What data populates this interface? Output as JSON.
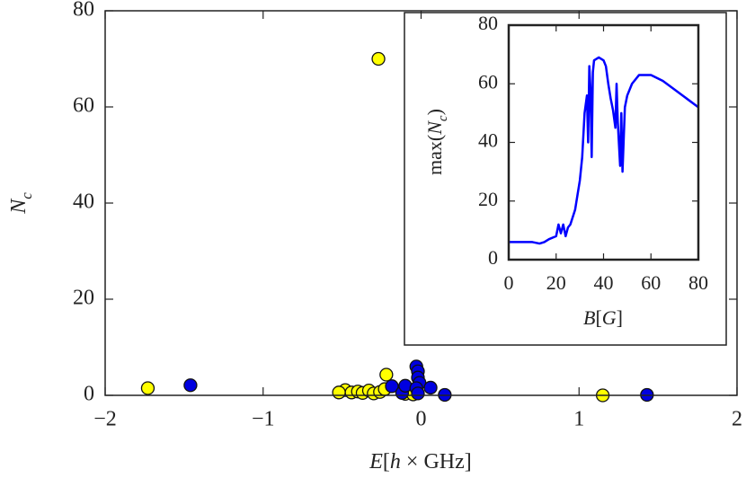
{
  "chart_data": [
    {
      "type": "scatter",
      "xlabel": [
        {
          "text": "E",
          "italic": true
        },
        {
          "text": "["
        },
        {
          "text": "h",
          "italic": true
        },
        {
          "text": " × GHz]"
        }
      ],
      "ylabel": [
        {
          "text": "N",
          "italic": true
        },
        {
          "text": "c",
          "italic": true,
          "sub": true
        }
      ],
      "xlim": [
        -2,
        2
      ],
      "ylim": [
        0,
        80
      ],
      "xticks": [
        {
          "value": -2,
          "label": "−2"
        },
        {
          "value": -1,
          "label": "−1"
        },
        0,
        1,
        2
      ],
      "yticks": [
        0,
        20,
        40,
        60,
        80
      ],
      "series": [
        {
          "color": "#ffff00",
          "x": [
            -1.73,
            -0.27,
            -0.48,
            -0.22,
            -0.52,
            -0.44,
            -0.4,
            -0.37,
            -0.33,
            -0.3,
            -0.26,
            -0.23,
            -0.1,
            -0.05,
            1.15
          ],
          "values": [
            1.5,
            70,
            1.1,
            4.3,
            0.6,
            0.6,
            0.8,
            0.5,
            1.0,
            0.4,
            0.7,
            1.3,
            0.3,
            0.2,
            0
          ]
        },
        {
          "color": "#0000e0",
          "x": [
            -1.46,
            -0.185,
            -0.12,
            -0.1,
            -0.03,
            -0.02,
            -0.02,
            -0.01,
            -0.03,
            -0.02,
            0.06,
            0.15,
            1.43
          ],
          "values": [
            2.1,
            1.9,
            0.5,
            2.0,
            6.0,
            5.0,
            3.7,
            2.6,
            1.5,
            0.4,
            1.6,
            0.1,
            0.1
          ]
        }
      ]
    },
    {
      "type": "line",
      "xlabel": [
        {
          "text": "B",
          "italic": true
        },
        {
          "text": "["
        },
        {
          "text": "G",
          "italic": true
        },
        {
          "text": "]"
        }
      ],
      "ylabel": [
        {
          "text": "max("
        },
        {
          "text": "N",
          "italic": true
        },
        {
          "text": "c",
          "italic": true,
          "sub": true
        },
        {
          "text": ")"
        }
      ],
      "xlim": [
        0,
        80
      ],
      "ylim": [
        0,
        80
      ],
      "xticks": [
        0,
        20,
        40,
        60,
        80
      ],
      "yticks": [
        0,
        20,
        40,
        60,
        80
      ],
      "color": "#0000ff",
      "x": [
        0,
        10,
        13,
        15,
        17,
        20,
        21,
        22,
        23,
        24,
        25,
        26,
        28,
        29,
        30,
        31,
        32,
        33,
        33.5,
        34,
        34.5,
        35,
        35.5,
        36,
        38,
        40,
        41,
        42,
        43,
        44,
        45,
        45.5,
        46,
        47,
        47.5,
        48,
        49,
        50,
        52,
        55,
        60,
        65,
        70,
        75,
        80
      ],
      "values": [
        6,
        6,
        5.5,
        6,
        7,
        8,
        12,
        9,
        12,
        8,
        11,
        12,
        17,
        22,
        27,
        35,
        50,
        56,
        40,
        66,
        58,
        35,
        64,
        68,
        69,
        68,
        66,
        60,
        55,
        51,
        45,
        60,
        47,
        32,
        50,
        30,
        52,
        56,
        60,
        63,
        63,
        61,
        58,
        55,
        52
      ]
    }
  ]
}
